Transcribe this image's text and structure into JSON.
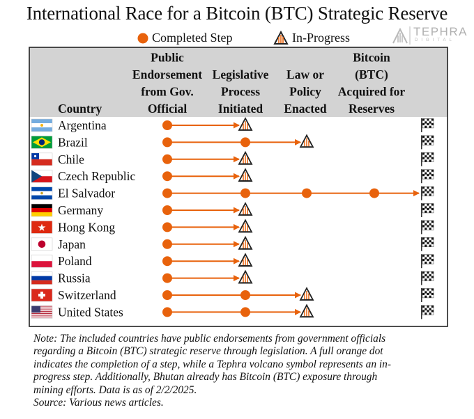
{
  "title": "International Race for a Bitcoin (BTC) Strategic Reserve",
  "legend": {
    "completed": "Completed Step",
    "in_progress": "In-Progress"
  },
  "logo": {
    "name": "TEPHRA",
    "sub": "DIGITAL"
  },
  "colors": {
    "accent": "#e8620c",
    "header_bg": "#d3d3d3",
    "border": "#222222",
    "logo": "#b9b9b9"
  },
  "chart_data": {
    "type": "table",
    "columns": [
      [
        "Country"
      ],
      [
        "Public",
        "Endorsement",
        "from Gov.",
        "Official"
      ],
      [
        "Legislative",
        "Process",
        "Initiated"
      ],
      [
        "Law or",
        "Policy",
        "Enacted"
      ],
      [
        "Bitcoin",
        "(BTC)",
        "Acquired for",
        "Reserves"
      ]
    ],
    "rows": [
      {
        "country": "Argentina",
        "flag": "argentina-flag",
        "completed": 1,
        "in_progress": 2
      },
      {
        "country": "Brazil",
        "flag": "brazil-flag",
        "completed": 2,
        "in_progress": 3
      },
      {
        "country": "Chile",
        "flag": "chile-flag",
        "completed": 1,
        "in_progress": 2
      },
      {
        "country": "Czech Republic",
        "flag": "czech-republic-flag",
        "completed": 1,
        "in_progress": 2
      },
      {
        "country": "El Salvador",
        "flag": "el-salvador-flag",
        "completed": 4,
        "in_progress": 0
      },
      {
        "country": "Germany",
        "flag": "germany-flag",
        "completed": 1,
        "in_progress": 2
      },
      {
        "country": "Hong Kong",
        "flag": "hong-kong-flag",
        "completed": 1,
        "in_progress": 2
      },
      {
        "country": "Japan",
        "flag": "japan-flag",
        "completed": 1,
        "in_progress": 2
      },
      {
        "country": "Poland",
        "flag": "poland-flag",
        "completed": 1,
        "in_progress": 2
      },
      {
        "country": "Russia",
        "flag": "russia-flag",
        "completed": 1,
        "in_progress": 2
      },
      {
        "country": "Switzerland",
        "flag": "switzerland-flag",
        "completed": 2,
        "in_progress": 3
      },
      {
        "country": "United States",
        "flag": "united-states-flag",
        "completed": 2,
        "in_progress": 3
      }
    ],
    "finish_icon": "checkered-flag-icon"
  },
  "note": [
    "Note: The included countries have public endorsements from government officials",
    "regarding a Bitcoin (BTC) strategic reserve through legislation. A full orange dot",
    "indicates the completion of a step, while a Tephra volcano symbol represents an in-",
    "progress step. Additionally, Bhutan already has Bitcoin (BTC) exposure through",
    "mining efforts. Data is as of 2/2/2025.",
    "Source: Various news articles."
  ]
}
